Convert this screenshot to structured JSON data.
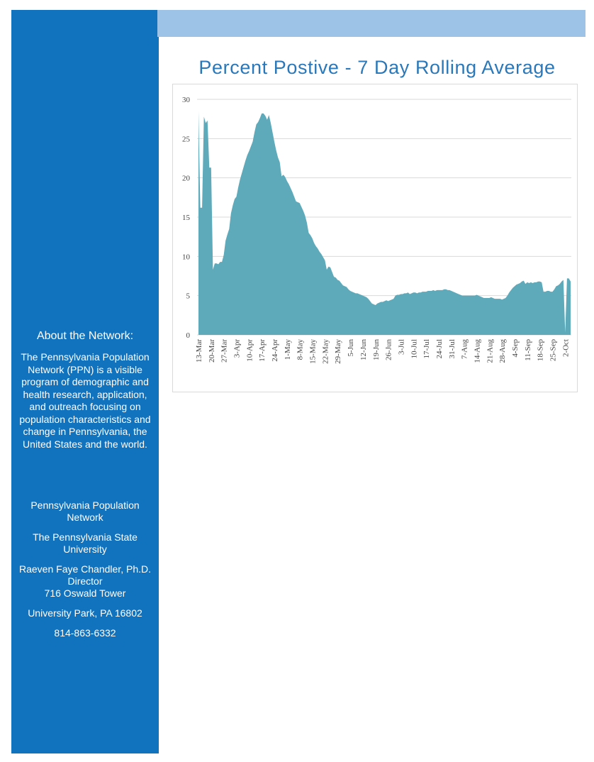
{
  "sidebar": {
    "heading": "About the Network:",
    "about": "The Pennsylvania Population Network (PPN) is a visible program of demographic and health research, application, and outreach focusing on population characteristics and change in Pennsylvania, the United States and the world.",
    "contact": [
      [
        "Pennsylvania Population Network"
      ],
      [
        "The Pennsylvania State University"
      ],
      [
        "Raeven Faye Chandler, Ph.D.",
        "Director",
        "716 Oswald Tower"
      ],
      [
        "University Park, PA 16802"
      ],
      [
        "814-863-6332"
      ]
    ]
  },
  "chart_data": {
    "type": "area",
    "title": "Percent Postive - 7 Day Rolling Average",
    "color": "#5eaabb",
    "grid": true,
    "ylim": [
      0,
      30
    ],
    "yticks": [
      0,
      5,
      10,
      15,
      20,
      25,
      30
    ],
    "categories": [
      "13-Mar",
      null,
      null,
      null,
      null,
      null,
      null,
      "20-Mar",
      null,
      null,
      null,
      null,
      null,
      null,
      "27-Mar",
      null,
      null,
      null,
      null,
      null,
      null,
      "3-Apr",
      null,
      null,
      null,
      null,
      null,
      null,
      "10-Apr",
      null,
      null,
      null,
      null,
      null,
      null,
      "17-Apr",
      null,
      null,
      null,
      null,
      null,
      null,
      "24-Apr",
      null,
      null,
      null,
      null,
      null,
      null,
      "1-May",
      null,
      null,
      null,
      null,
      null,
      null,
      "8-May",
      null,
      null,
      null,
      null,
      null,
      null,
      "15-May",
      null,
      null,
      null,
      null,
      null,
      null,
      "22-May",
      null,
      null,
      null,
      null,
      null,
      null,
      "29-May",
      null,
      null,
      null,
      null,
      null,
      null,
      "5-Jun",
      null,
      null,
      null,
      null,
      null,
      null,
      "12-Jun",
      null,
      null,
      null,
      null,
      null,
      null,
      "19-Jun",
      null,
      null,
      null,
      null,
      null,
      null,
      "26-Jun",
      null,
      null,
      null,
      null,
      null,
      null,
      "3-Jul",
      null,
      null,
      null,
      null,
      null,
      null,
      "10-Jul",
      null,
      null,
      null,
      null,
      null,
      null,
      "17-Jul",
      null,
      null,
      null,
      null,
      null,
      null,
      "24-Jul",
      null,
      null,
      null,
      null,
      null,
      null,
      "31-Jul",
      null,
      null,
      null,
      null,
      null,
      null,
      "7-Aug",
      null,
      null,
      null,
      null,
      null,
      null,
      "14-Aug",
      null,
      null,
      null,
      null,
      null,
      null,
      "21-Aug",
      null,
      null,
      null,
      null,
      null,
      null,
      "28-Aug",
      null,
      null,
      null,
      null,
      null,
      null,
      "4-Sep",
      null,
      null,
      null,
      null,
      null,
      null,
      "11-Sep",
      null,
      null,
      null,
      null,
      null,
      null,
      "18-Sep",
      null,
      null,
      null,
      null,
      null,
      null,
      "25-Sep",
      null,
      null,
      null,
      null,
      null,
      null,
      "2-Oct",
      null,
      null,
      null
    ],
    "values": [
      28.5,
      16.2,
      16.2,
      27.8,
      27,
      27.3,
      21.3,
      21.3,
      8.3,
      9.1,
      9.1,
      9.0,
      9.3,
      9.3,
      10.2,
      12,
      12.8,
      13.5,
      15.5,
      16.5,
      17.3,
      17.6,
      18.8,
      19.8,
      20.6,
      21.4,
      22.2,
      22.9,
      23.4,
      24.0,
      24.6,
      25.8,
      26.8,
      27.1,
      27.6,
      28.2,
      28.2,
      27.9,
      27.4,
      28.0,
      27.0,
      25.8,
      24.6,
      23.5,
      22.6,
      22.0,
      20.2,
      20.4,
      20.1,
      19.6,
      19.2,
      18.7,
      18.2,
      17.6,
      17.0,
      16.9,
      16.8,
      16.3,
      15.8,
      15.2,
      14.3,
      13.0,
      12.7,
      12.3,
      11.7,
      11.3,
      11.0,
      10.6,
      10.3,
      9.9,
      9.5,
      8.3,
      8.7,
      8.6,
      8.0,
      7.4,
      7.3,
      7.0,
      6.9,
      6.6,
      6.3,
      6.2,
      6.1,
      5.8,
      5.6,
      5.5,
      5.4,
      5.3,
      5.3,
      5.2,
      5.1,
      5.0,
      4.9,
      4.8,
      4.6,
      4.3,
      4.0,
      3.9,
      3.8,
      4.0,
      4.1,
      4.2,
      4.2,
      4.3,
      4.4,
      4.3,
      4.4,
      4.5,
      4.6,
      5.0,
      5.1,
      5.1,
      5.2,
      5.2,
      5.3,
      5.3,
      5.4,
      5.2,
      5.3,
      5.4,
      5.4,
      5.3,
      5.4,
      5.4,
      5.5,
      5.5,
      5.5,
      5.6,
      5.6,
      5.6,
      5.7,
      5.6,
      5.7,
      5.7,
      5.7,
      5.7,
      5.8,
      5.8,
      5.7,
      5.7,
      5.6,
      5.5,
      5.4,
      5.3,
      5.2,
      5.1,
      5.0,
      5.0,
      5.0,
      5.0,
      5.0,
      5.0,
      5.0,
      5.0,
      5.1,
      5.0,
      4.9,
      4.8,
      4.7,
      4.7,
      4.7,
      4.7,
      4.8,
      4.7,
      4.6,
      4.6,
      4.6,
      4.6,
      4.5,
      4.6,
      4.7,
      5.0,
      5.4,
      5.7,
      6.0,
      6.2,
      6.4,
      6.5,
      6.6,
      6.8,
      6.9,
      6.5,
      6.7,
      6.6,
      6.7,
      6.6,
      6.7,
      6.7,
      6.8,
      6.8,
      6.7,
      5.5,
      5.5,
      5.6,
      5.6,
      5.5,
      5.5,
      5.8,
      6.2,
      6.3,
      6.5,
      6.8,
      7.0,
      0.3,
      7.2,
      7.2,
      6.8
    ]
  }
}
